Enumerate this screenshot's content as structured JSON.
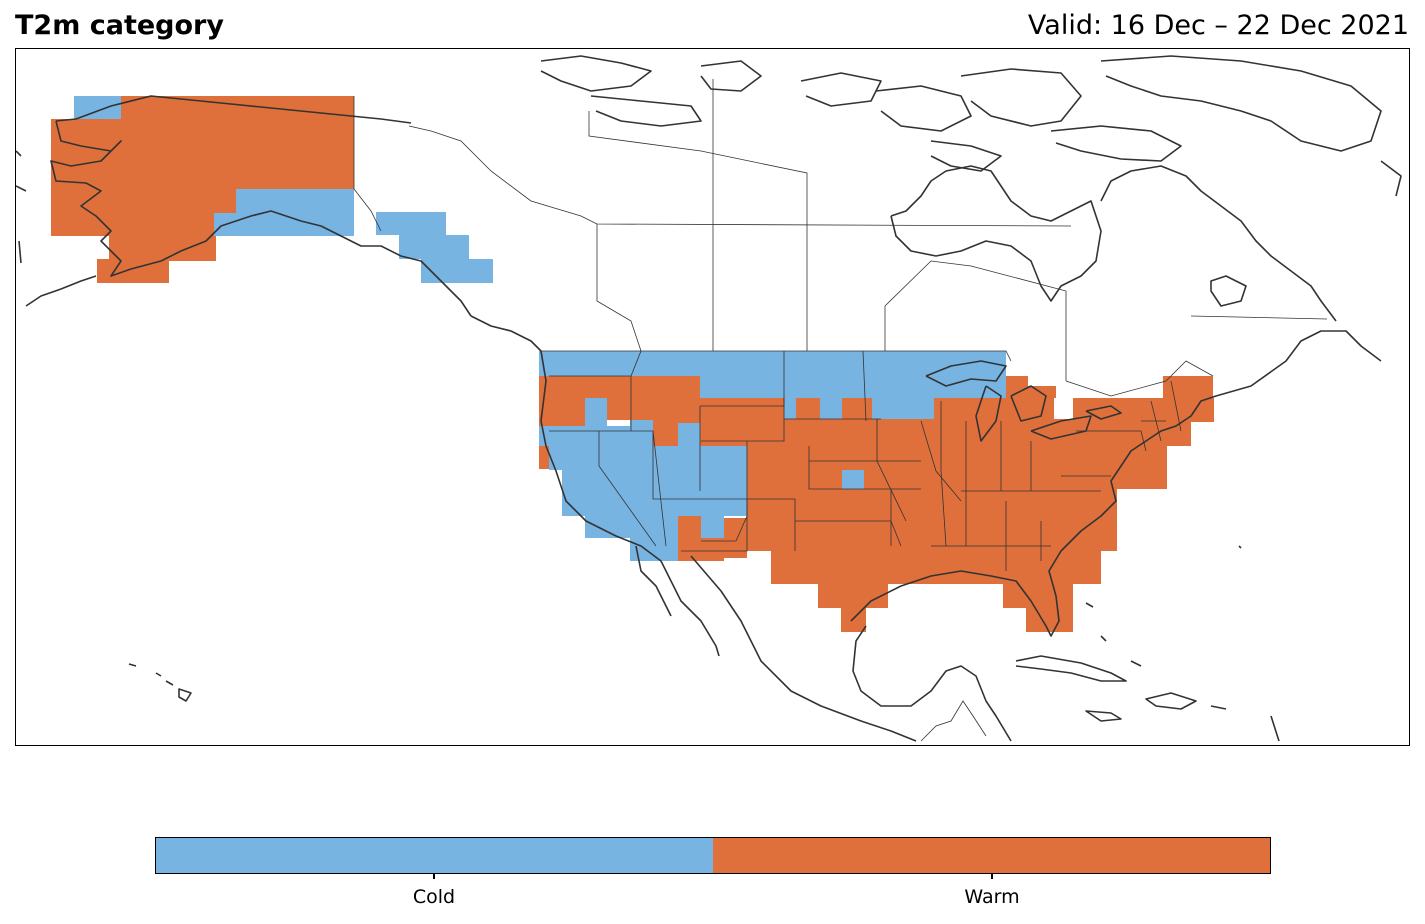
{
  "header": {
    "title": "T2m category",
    "valid_label": "Valid: 16 Dec – 22 Dec 2021"
  },
  "colors": {
    "cold": "#77b4e2",
    "warm": "#e0703b",
    "coast": "#333333",
    "border": "#333333"
  },
  "legend": {
    "items": [
      {
        "label": "Cold",
        "color": "#77b4e2"
      },
      {
        "label": "Warm",
        "color": "#e0703b"
      }
    ]
  }
}
